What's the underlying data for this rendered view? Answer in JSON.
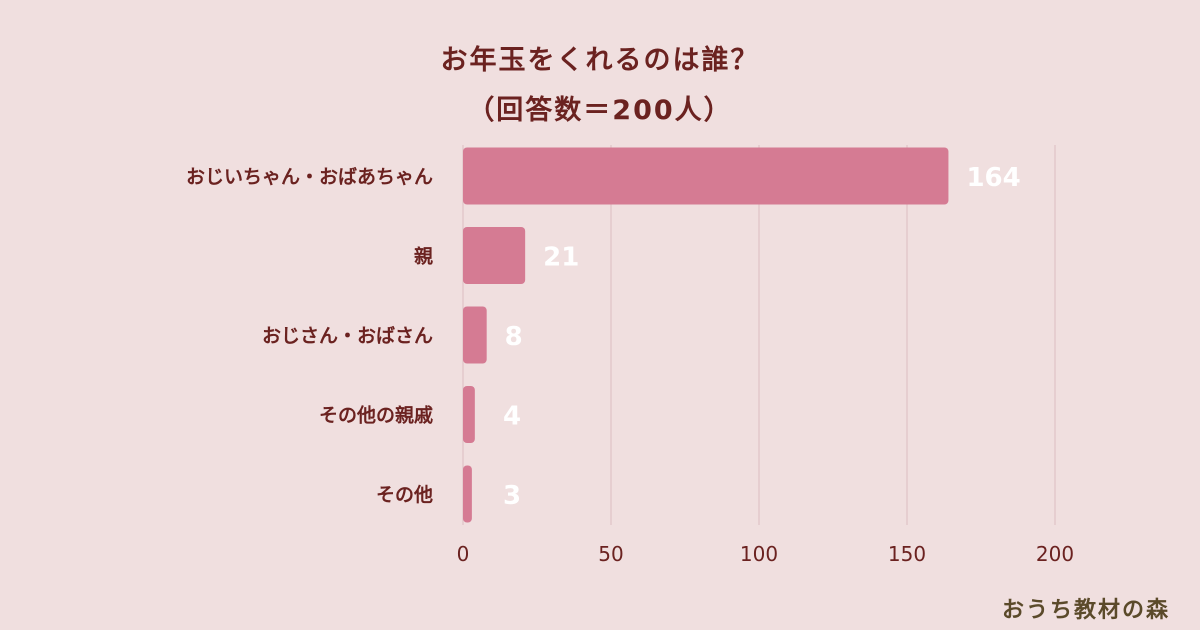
{
  "chart_data": {
    "type": "bar",
    "orientation": "horizontal",
    "title": "お年玉をくれるのは誰？",
    "subtitle": "（回答数＝200人）",
    "categories": [
      "おじいちゃん・おばあちゃん",
      "親",
      "おじさん・おばさん",
      "その他の親戚",
      "その他"
    ],
    "values": [
      164,
      21,
      8,
      4,
      3
    ],
    "xlim": [
      0,
      200
    ],
    "xticks": [
      "0",
      "50",
      "100",
      "150",
      "200"
    ],
    "grid": true,
    "xlabel": "",
    "ylabel": ""
  },
  "colors": {
    "background": "#f0dfdf",
    "bar": "#d57b93",
    "grid": "#dcbcc0",
    "text": "#6b2220",
    "value_label": "#ffffff"
  },
  "brand": {
    "logo_text": "おうち教材の森"
  }
}
